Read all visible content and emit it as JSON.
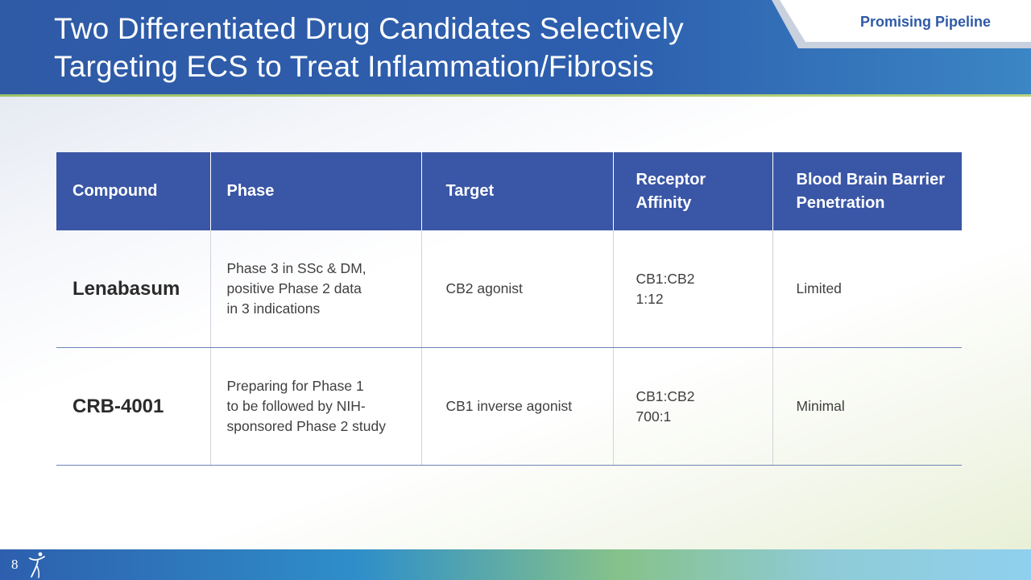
{
  "slide": {
    "title": "Two Differentiated Drug Candidates Selectively Targeting ECS to Treat Inflammation/Fibrosis",
    "section_tag": "Promising Pipeline",
    "page_number": "8",
    "logo_icon": "figure-logo-icon"
  },
  "table": {
    "headers": [
      "Compound",
      "Phase",
      "Target",
      "Receptor\nAffinity",
      "Blood Brain Barrier\nPenetration"
    ],
    "rows": [
      {
        "compound": "Lenabasum",
        "phase": "Phase 3 in SSc & DM,\npositive Phase 2 data\nin 3 indications",
        "target": "CB2 agonist",
        "affinity": "CB1:CB2\n1:12",
        "bbb": "Limited"
      },
      {
        "compound": "CRB-4001",
        "phase": "Preparing for Phase 1\nto be followed by NIH-\nsponsored Phase 2 study",
        "target": "CB1 inverse agonist",
        "affinity": "CB1:CB2\n700:1",
        "bbb": "Minimal"
      }
    ]
  },
  "colors": {
    "header_blue": "#2f5aa6",
    "table_header": "#3a56a6",
    "accent_green": "#9bc36a"
  }
}
